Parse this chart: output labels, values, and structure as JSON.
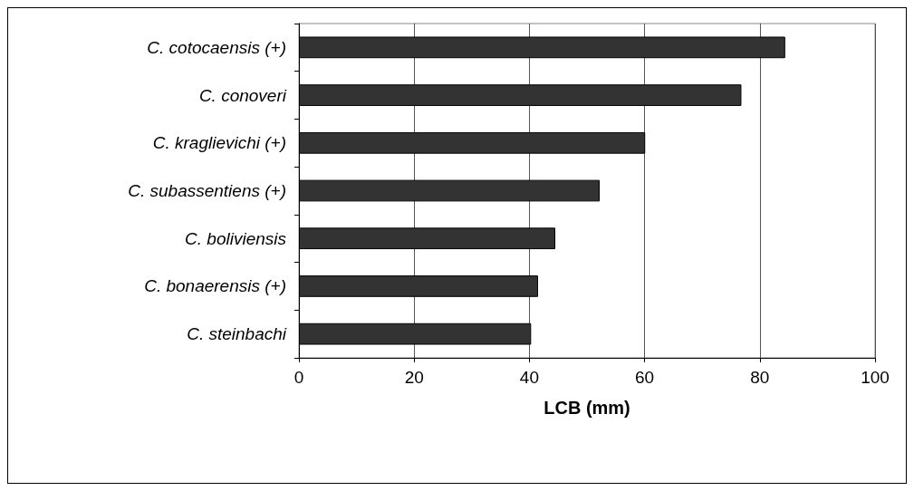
{
  "chart_data": {
    "type": "bar",
    "orientation": "horizontal",
    "xlabel": "LCB (mm)",
    "categories": [
      "C. cotocaensis (+)",
      "C. conoveri",
      "C. kraglievichi (+)",
      "C. subassentiens (+)",
      "C. boliviensis",
      "C. bonaerensis (+)",
      "C. steinbachi"
    ],
    "values": [
      84.4,
      76.8,
      60.1,
      52.2,
      44.5,
      41.5,
      40.3
    ],
    "color": "#333333",
    "xlim": [
      0,
      100
    ],
    "xticks": [
      0,
      20,
      40,
      60,
      80,
      100
    ],
    "grid": "x"
  }
}
